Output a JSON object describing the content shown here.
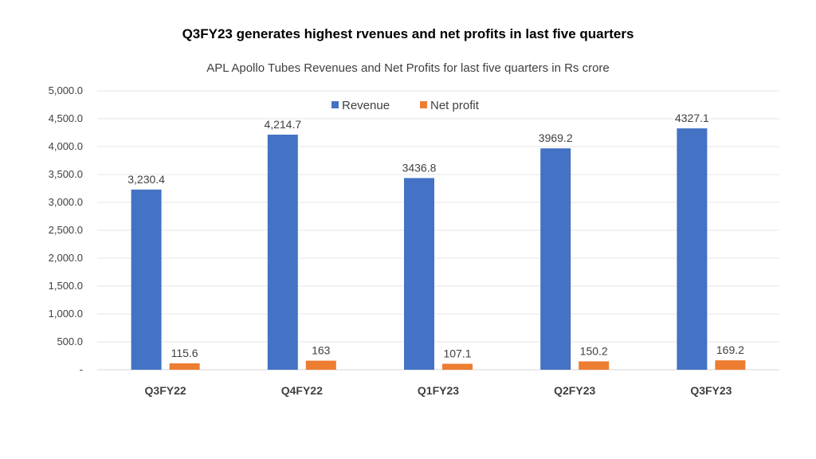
{
  "chart_data": {
    "type": "bar",
    "title": "Q3FY23 generates highest rvenues and net profits in last five quarters",
    "subtitle": "APL Apollo Tubes Revenues and Net Profits for last five quarters in Rs crore",
    "categories": [
      "Q3FY22",
      "Q4FY22",
      "Q1FY23",
      "Q2FY23",
      "Q3FY23"
    ],
    "series": [
      {
        "name": "Revenue",
        "color": "#4472C4",
        "values": [
          3230.4,
          4214.7,
          3436.8,
          3969.2,
          4327.1
        ],
        "labels": [
          "3,230.4",
          "4,214.7",
          "3436.8",
          "3969.2",
          "4327.1"
        ]
      },
      {
        "name": "Net profit",
        "color": "#ED7D31",
        "values": [
          115.6,
          163,
          107.1,
          150.2,
          169.2
        ],
        "labels": [
          "115.6",
          "163",
          "107.1",
          "150.2",
          "169.2"
        ]
      }
    ],
    "ylim": [
      0,
      5000
    ],
    "yticks": [
      0,
      500,
      1000,
      1500,
      2000,
      2500,
      3000,
      3500,
      4000,
      4500,
      5000
    ],
    "ytick_labels": [
      "-",
      "500.0",
      "1,000.0",
      "1,500.0",
      "2,000.0",
      "2,500.0",
      "3,000.0",
      "3,500.0",
      "4,000.0",
      "4,500.0",
      "5,000.0"
    ],
    "grid": true,
    "legend_position": "top-right",
    "xlabel": "",
    "ylabel": ""
  }
}
